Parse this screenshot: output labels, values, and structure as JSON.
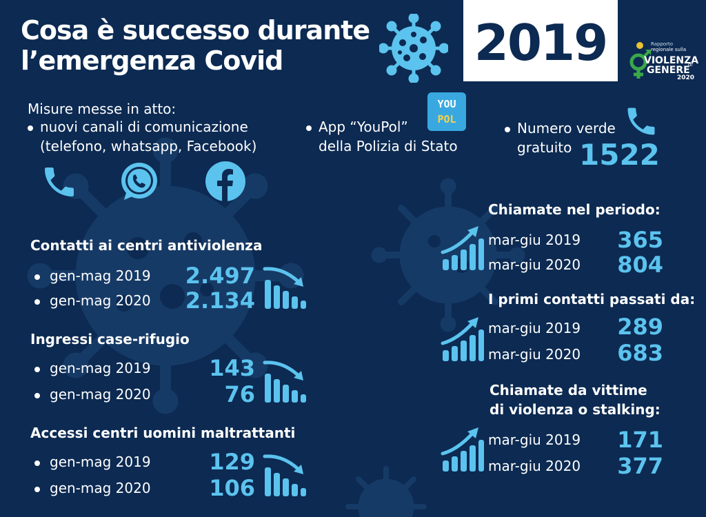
{
  "header": {
    "title_line1": "Cosa è successo durante",
    "title_line2": "l’emergenza Covid",
    "year": "2019"
  },
  "logo": {
    "line1": "Rapporto",
    "line2": "regionale sulla",
    "line3": "VIOLENZA",
    "line4": "di",
    "line5": "GENERE",
    "line6": "2020"
  },
  "measures": {
    "title": "Misure messe in atto:",
    "channels_line1": "nuovi canali di comunicazione",
    "channels_line2": "(telefono, whatsapp, Facebook)",
    "app_line1": "App “YouPol”",
    "app_line2": "della Polizia di Stato",
    "app_icon_top": "YOU",
    "app_icon_bottom": "POL",
    "hotline_line1": "Numero verde",
    "hotline_line2": "gratuito",
    "hotline_number": "1522"
  },
  "left_sections": [
    {
      "title": "Contatti ai centri antiviolenza",
      "rows": [
        {
          "label": "gen-mag 2019",
          "value": "2.497"
        },
        {
          "label": "gen-mag 2020",
          "value": "2.134"
        }
      ]
    },
    {
      "title": "Ingressi case-rifugio",
      "rows": [
        {
          "label": "gen-mag 2019",
          "value": "143"
        },
        {
          "label": "gen-mag 2020",
          "value": "76"
        }
      ]
    },
    {
      "title": "Accessi centri uomini maltrattanti",
      "rows": [
        {
          "label": "gen-mag 2019",
          "value": "129"
        },
        {
          "label": "gen-mag 2020",
          "value": "106"
        }
      ]
    }
  ],
  "right_sections": [
    {
      "title": "Chiamate nel periodo:",
      "rows": [
        {
          "label": "mar-giu 2019",
          "value": "365"
        },
        {
          "label": "mar-giu 2020",
          "value": "804"
        }
      ]
    },
    {
      "title": "I primi contatti passati da:",
      "rows": [
        {
          "label": "mar-giu 2019",
          "value": "289"
        },
        {
          "label": "mar-giu 2020",
          "value": "683"
        }
      ]
    },
    {
      "title_line1": "Chiamate da vittime",
      "title_line2": "di violenza o stalking:",
      "rows": [
        {
          "label": "mar-giu 2019",
          "value": "171"
        },
        {
          "label": "mar-giu 2020",
          "value": "377"
        }
      ]
    }
  ],
  "colors": {
    "background": "#0c2a52",
    "accent": "#5bc3ee",
    "virus_faint": "#1a3d6b",
    "logo_green": "#3aa84a"
  }
}
